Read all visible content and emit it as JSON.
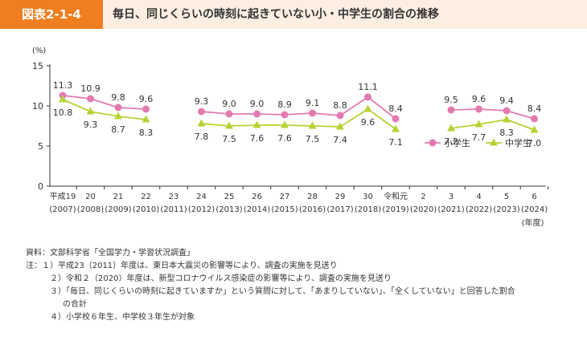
{
  "header": {
    "figure_label": "図表2-1-4",
    "title": "毎日、同じくらいの時刻に起きていない小・中学生の割合の推移"
  },
  "chart_data": {
    "type": "line",
    "y_unit": "(%)",
    "x_unit": "(年度)",
    "ylim": [
      0,
      15
    ],
    "yticks": [
      0,
      5,
      10,
      15
    ],
    "categories": [
      {
        "era": "平成19",
        "year": "(2007)"
      },
      {
        "era": "20",
        "year": "(2008)"
      },
      {
        "era": "21",
        "year": "(2009)"
      },
      {
        "era": "22",
        "year": "(2010)"
      },
      {
        "era": "23",
        "year": "(2011)"
      },
      {
        "era": "24",
        "year": "(2012)"
      },
      {
        "era": "25",
        "year": "(2013)"
      },
      {
        "era": "26",
        "year": "(2014)"
      },
      {
        "era": "27",
        "year": "(2015)"
      },
      {
        "era": "28",
        "year": "(2016)"
      },
      {
        "era": "29",
        "year": "(2017)"
      },
      {
        "era": "30",
        "year": "(2018)"
      },
      {
        "era": "令和元",
        "year": "(2019)"
      },
      {
        "era": "2",
        "year": "(2020)"
      },
      {
        "era": "3",
        "year": "(2021)"
      },
      {
        "era": "4",
        "year": "(2022)"
      },
      {
        "era": "5",
        "year": "(2023)"
      },
      {
        "era": "6",
        "year": "(2024)"
      }
    ],
    "series": [
      {
        "name": "小学生",
        "color": "#e27ab0",
        "marker": "circle",
        "values": [
          11.3,
          10.9,
          9.8,
          9.6,
          null,
          9.3,
          9.0,
          9.0,
          8.9,
          9.1,
          8.8,
          11.1,
          8.4,
          null,
          9.5,
          9.6,
          9.4,
          8.4
        ],
        "labels": [
          "11.3",
          "10.9",
          "9.8",
          "9.6",
          null,
          "9.3",
          "9.0",
          "9.0",
          "8.9",
          "9.1",
          "8.8",
          "11.1",
          "8.4",
          null,
          "9.5",
          "9.6",
          "9.4",
          "8.4"
        ]
      },
      {
        "name": "中学生",
        "color": "#b5d334",
        "marker": "triangle",
        "values": [
          10.8,
          9.3,
          8.7,
          8.3,
          null,
          7.8,
          7.5,
          7.6,
          7.6,
          7.5,
          7.4,
          9.6,
          7.1,
          null,
          7.2,
          7.7,
          8.3,
          7.0
        ],
        "labels": [
          "10.8",
          "9.3",
          "8.7",
          "8.3",
          null,
          "7.8",
          "7.5",
          "7.6",
          "7.6",
          "7.5",
          "7.4",
          "9.6",
          "7.1",
          null,
          "7.2",
          "7.7",
          "8.3",
          "7.0"
        ]
      }
    ],
    "legend": [
      "小学生",
      "中学生"
    ],
    "legend_position": "right",
    "grid": false
  },
  "notes": {
    "source": "資料：文部科学省「全国学力・学習状況調査」",
    "note1": "注：１）平成23（2011）年度は、東日本大震災の影響等により、調査の実施を見送り",
    "note2": "２）令和２（2020）年度は、新型コロナウイルス感染症の影響等により、調査の実施を見送り",
    "note3a": "３）「毎日、同じくらいの時刻に起きていますか」という質問に対して、「あまりしていない」、「全くしていない」と回答した割合",
    "note3b": "の合計",
    "note4": "４）小学校６年生、中学校３年生が対象"
  }
}
